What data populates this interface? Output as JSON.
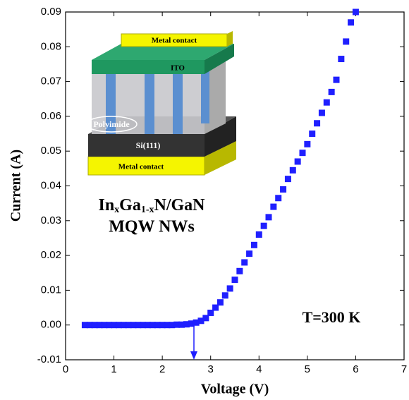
{
  "chart_data": {
    "type": "scatter",
    "x_label": "Voltage (V)",
    "y_label": "Current (A)",
    "color": "#1f1fff",
    "x": [
      0.4,
      0.5,
      0.6,
      0.7,
      0.8,
      0.9,
      1.0,
      1.1,
      1.2,
      1.3,
      1.4,
      1.5,
      1.6,
      1.7,
      1.8,
      1.9,
      2.0,
      2.1,
      2.2,
      2.3,
      2.4,
      2.5,
      2.6,
      2.7,
      2.8,
      2.9,
      3.0,
      3.1,
      3.2,
      3.3,
      3.4,
      3.5,
      3.6,
      3.7,
      3.8,
      3.9,
      4.0,
      4.1,
      4.2,
      4.3,
      4.4,
      4.5,
      4.6,
      4.7,
      4.8,
      4.9,
      5.0,
      5.1,
      5.2,
      5.3,
      5.4,
      5.5,
      5.6,
      5.7,
      5.8,
      5.9,
      6.0
    ],
    "values": [
      0,
      0,
      0,
      0,
      0,
      0,
      0,
      0,
      0,
      0,
      0,
      0,
      0,
      0,
      0,
      0,
      0,
      0,
      0,
      0.0001,
      0.0001,
      0.0002,
      0.0004,
      0.0007,
      0.0012,
      0.002,
      0.0035,
      0.005,
      0.0065,
      0.0085,
      0.0105,
      0.013,
      0.0155,
      0.018,
      0.0205,
      0.023,
      0.026,
      0.0285,
      0.031,
      0.034,
      0.0365,
      0.039,
      0.042,
      0.0445,
      0.047,
      0.0495,
      0.052,
      0.055,
      0.058,
      0.061,
      0.064,
      0.067,
      0.0705,
      0.0765,
      0.0815,
      0.087,
      0.09
    ],
    "xlim": [
      0,
      7
    ],
    "xticks": [
      0,
      1,
      2,
      3,
      4,
      5,
      6,
      7
    ],
    "ylim": [
      -0.01,
      0.09
    ],
    "yticks": [
      -0.01,
      {
        "value": 0,
        "label": "0.00"
      },
      0.01,
      0.02,
      0.03,
      0.04,
      0.05,
      0.06,
      0.07,
      0.08,
      0.09
    ],
    "annotations": [
      "Metal contact",
      "ITO",
      "Polyimide",
      "Si(111)",
      "Metal contact",
      "In",
      "x",
      "Ga",
      "1-x",
      "N/GaN",
      "MQW NWs",
      "T=300 K"
    ]
  }
}
